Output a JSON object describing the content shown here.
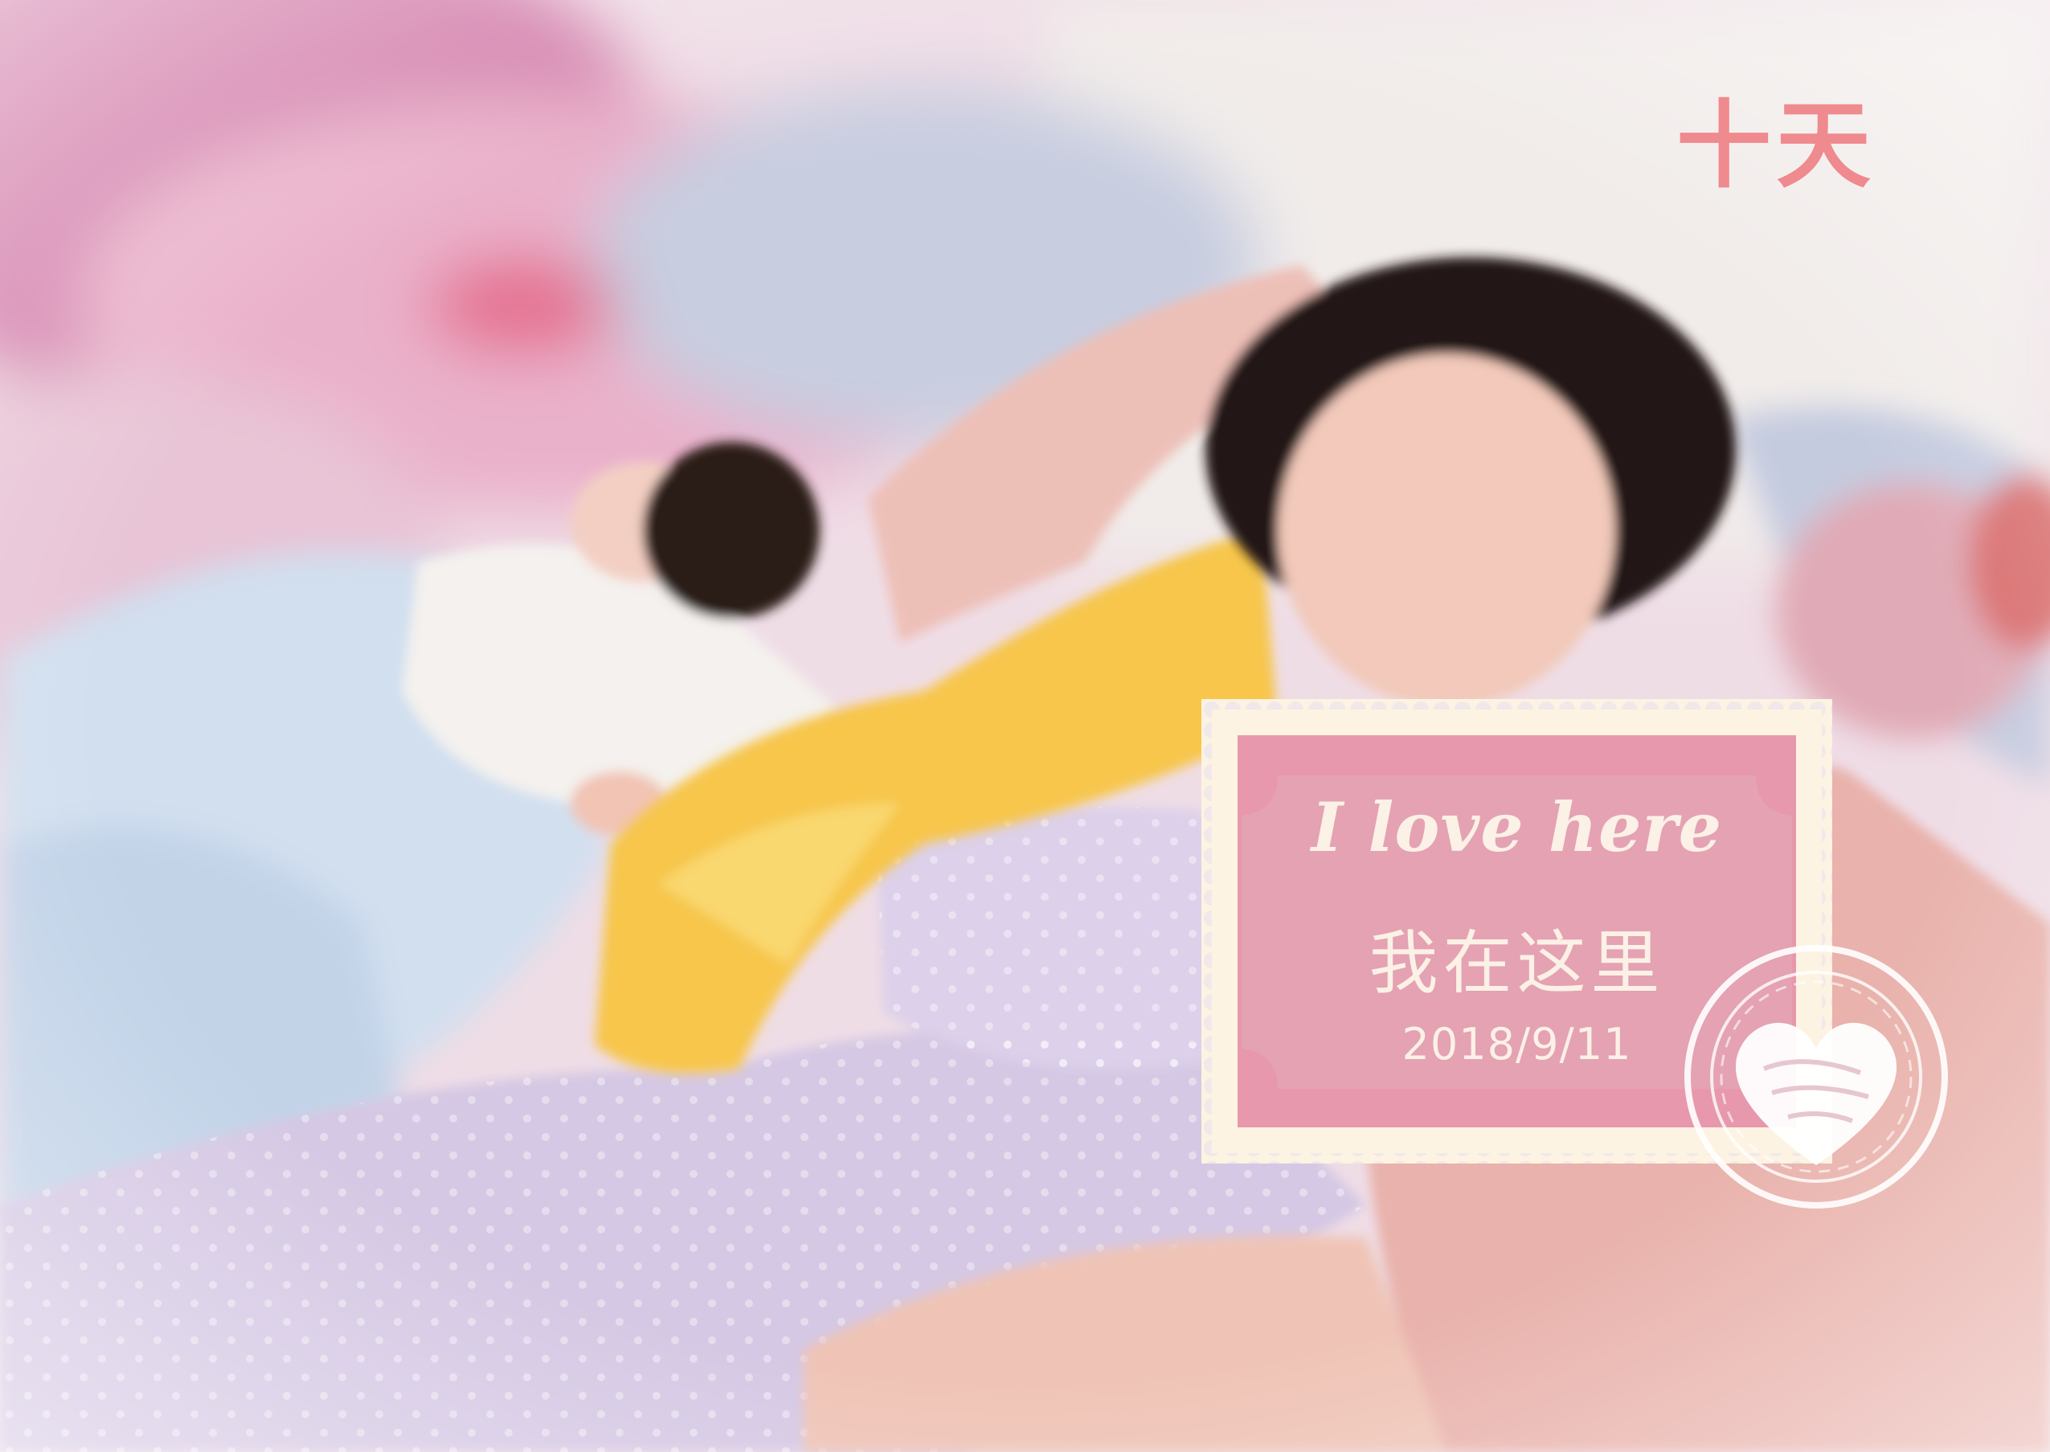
{
  "caption": {
    "text": "十天"
  },
  "stamp": {
    "script_text": "I love here",
    "chinese_text": "我在这里",
    "date": "2018/9/11"
  },
  "colors": {
    "caption_pink": "#ef8a8e",
    "stamp_pink": "#e79aac",
    "stamp_cream": "#fdf3e2",
    "stamp_text": "#fbf1e6"
  },
  "icons": {
    "postmark": "heart-postmark-icon"
  }
}
